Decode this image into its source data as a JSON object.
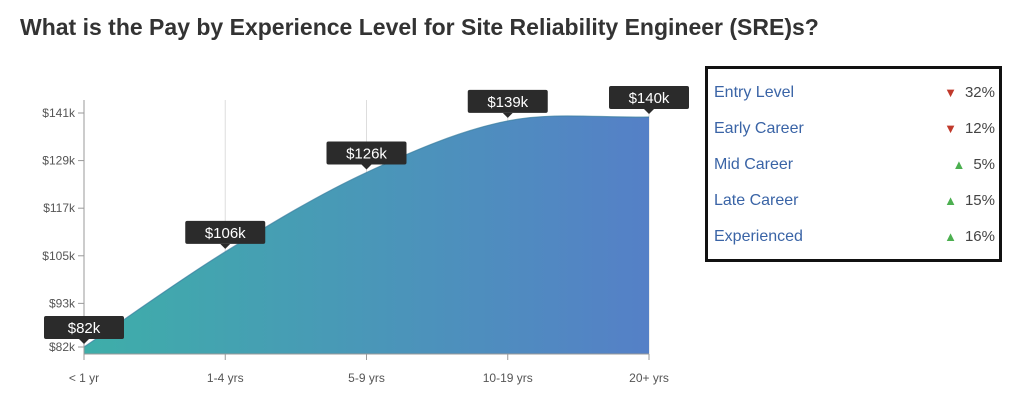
{
  "title": "What is the Pay by Experience Level for Site Reliability Engineer (SRE)s?",
  "chart_data": {
    "type": "area",
    "title": "",
    "xlabel": "",
    "ylabel": "",
    "categories": [
      "< 1 yr",
      "1-4 yrs",
      "5-9 yrs",
      "10-19 yrs",
      "20+ yrs"
    ],
    "values": [
      82,
      106,
      126,
      139,
      140
    ],
    "value_labels": [
      "$82k",
      "$106k",
      "$126k",
      "$139k",
      "$140k"
    ],
    "y_ticks": [
      82,
      93,
      105,
      117,
      129,
      141
    ],
    "y_tick_labels": [
      "$82k",
      "$93k",
      "$105k",
      "$117k",
      "$129k",
      "$141k"
    ],
    "ylim": [
      82,
      141
    ],
    "grid": "vertical",
    "gradient": [
      "#3eaea9",
      "#5580c7"
    ]
  },
  "legend": {
    "items": [
      {
        "label": "Entry Level",
        "change": "32%",
        "direction": "down"
      },
      {
        "label": "Early Career",
        "change": "12%",
        "direction": "down"
      },
      {
        "label": "Mid Career",
        "change": "5%",
        "direction": "up"
      },
      {
        "label": "Late Career",
        "change": "15%",
        "direction": "up"
      },
      {
        "label": "Experienced",
        "change": "16%",
        "direction": "up"
      }
    ],
    "arrow_down": "▼",
    "arrow_up": "▲"
  }
}
